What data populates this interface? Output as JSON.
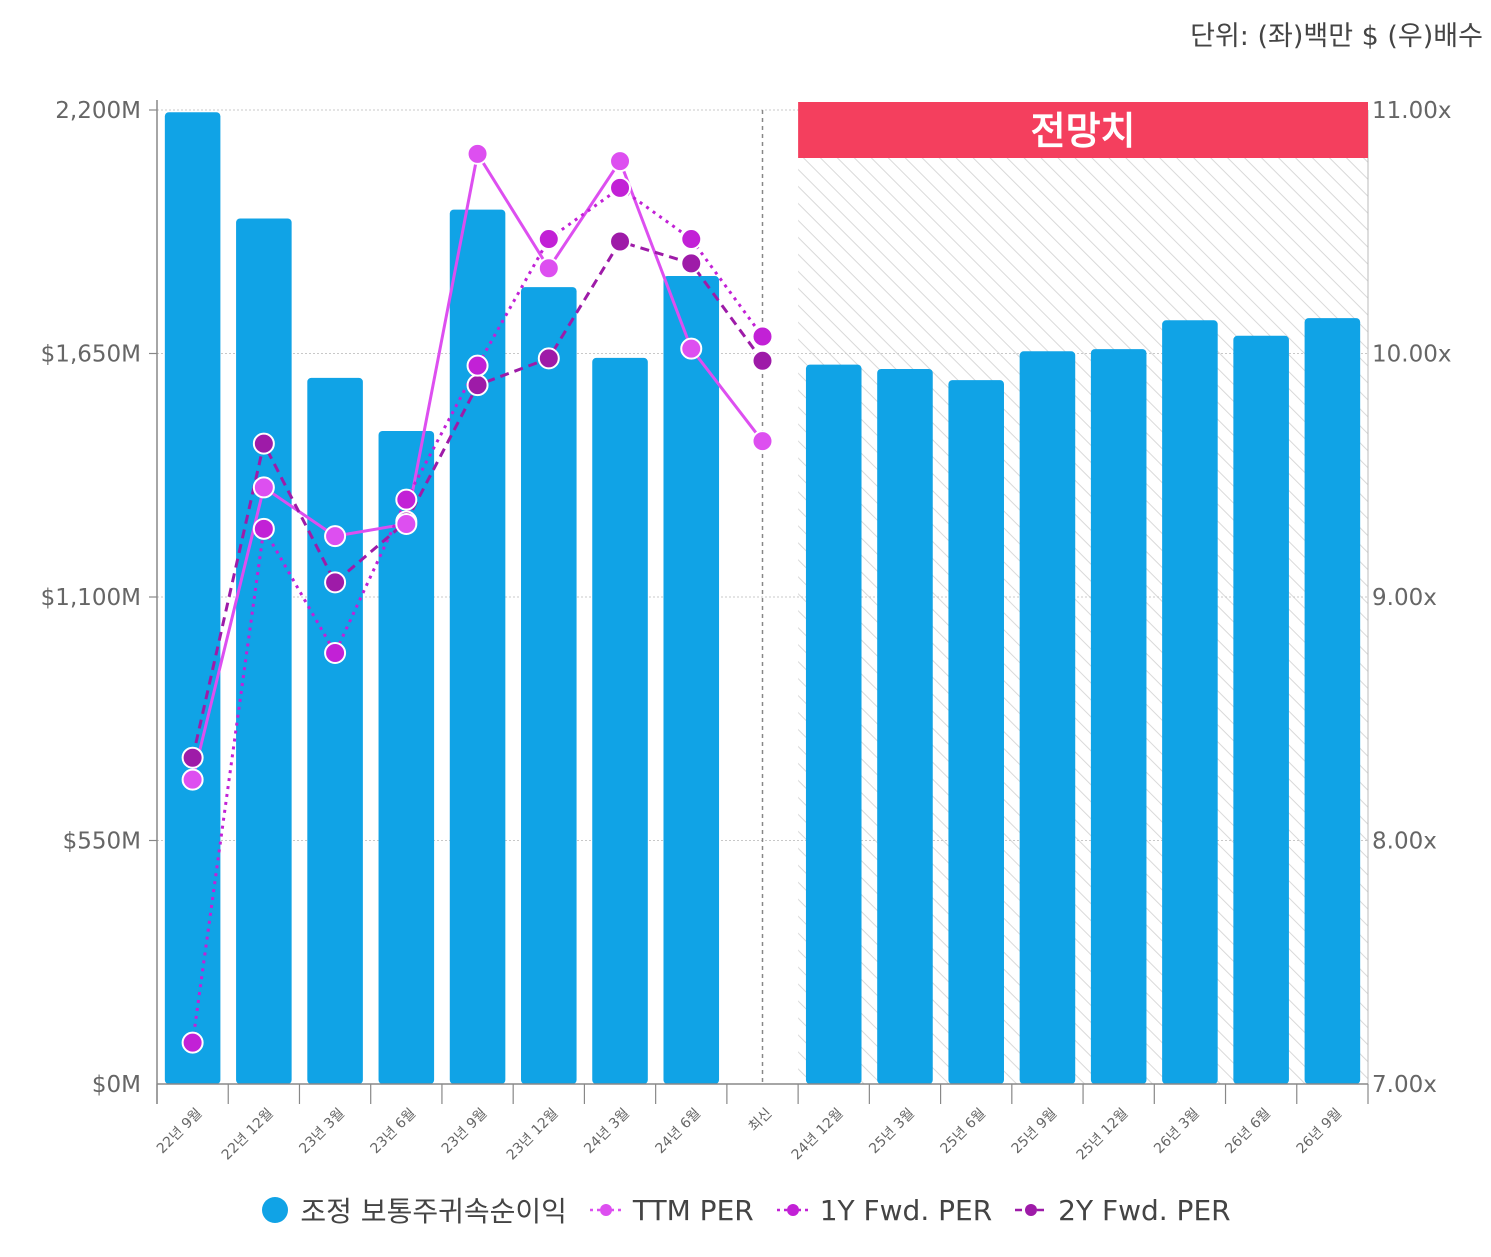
{
  "unit_label": "단위: (좌)백만 $ (우)배수",
  "forecast_label": "전망치",
  "colors": {
    "bar": "#10a3e6",
    "ttm": "#dd4ff0",
    "fwd1": "#c221d6",
    "fwd2": "#9e1ba8",
    "forecast_banner": "#f43f5e"
  },
  "chart_data": {
    "type": "bar",
    "categories": [
      "22년 9월",
      "22년 12월",
      "23년 3월",
      "23년 6월",
      "23년 9월",
      "23년 12월",
      "24년 3월",
      "24년 6월",
      "최신",
      "24년 12월",
      "25년 3월",
      "25년 6월",
      "25년 9월",
      "25년 12월",
      "26년 3월",
      "26년 6월",
      "26년 9월"
    ],
    "left_axis": {
      "ylim": [
        0,
        2200
      ],
      "ticks": [
        "$0M",
        "$550M",
        "$1,100M",
        "$1,650M",
        "2,200M"
      ]
    },
    "right_axis": {
      "ylim": [
        7.0,
        11.0
      ],
      "ticks": [
        "7.00x",
        "8.00x",
        "9.00x",
        "10.00x",
        "11.00x"
      ]
    },
    "forecast_from_index": 9,
    "series": [
      {
        "name": "조정 보통주귀속순이익",
        "type": "bar",
        "axis": "left",
        "values": [
          2195,
          1955,
          1595,
          1475,
          1975,
          1800,
          1640,
          1825,
          null,
          1625,
          1615,
          1590,
          1655,
          1660,
          1725,
          1690,
          1730
        ]
      },
      {
        "name": "TTM PER",
        "type": "line",
        "axis": "right",
        "style": "solid",
        "values": [
          8.25,
          9.45,
          9.25,
          9.3,
          10.82,
          10.35,
          10.79,
          10.02,
          9.64,
          null,
          null,
          null,
          null,
          null,
          null,
          null,
          null
        ]
      },
      {
        "name": "1Y Fwd. PER",
        "type": "line",
        "axis": "right",
        "style": "dotted",
        "values": [
          7.17,
          9.28,
          8.77,
          9.4,
          9.95,
          10.47,
          10.68,
          10.47,
          10.07,
          null,
          null,
          null,
          null,
          null,
          null,
          null,
          null
        ]
      },
      {
        "name": "2Y Fwd. PER",
        "type": "line",
        "axis": "right",
        "style": "dashed",
        "values": [
          8.34,
          9.63,
          9.06,
          9.31,
          9.87,
          9.98,
          10.46,
          10.37,
          9.97,
          null,
          null,
          null,
          null,
          null,
          null,
          null,
          null
        ]
      }
    ]
  }
}
